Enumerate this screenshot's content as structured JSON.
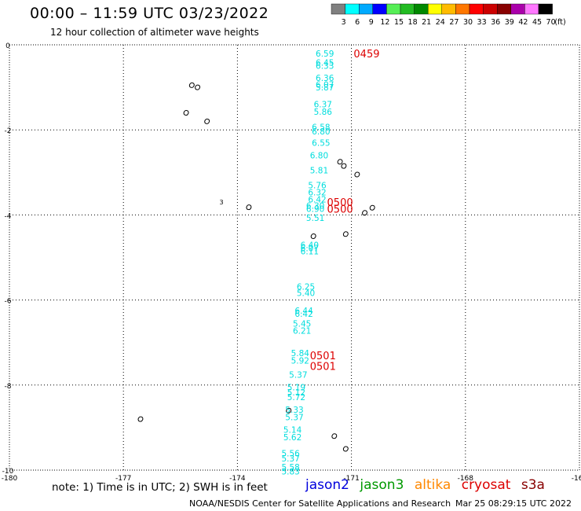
{
  "header": {
    "title": "00:00 – 11:59 UTC 03/23/2022",
    "subtitle": "12 hour collection of altimeter wave heights"
  },
  "colorbar": {
    "labels": [
      "3",
      "6",
      "9",
      "12",
      "15",
      "18",
      "21",
      "24",
      "27",
      "30",
      "33",
      "36",
      "39",
      "42",
      "45",
      "70"
    ],
    "unit": "(ft)",
    "colors": [
      "#808080",
      "#00ffff",
      "#00aaff",
      "#0000ff",
      "#55ee55",
      "#22bb22",
      "#008800",
      "#ffff00",
      "#ffbb00",
      "#ff7700",
      "#ff0000",
      "#cc0000",
      "#880000",
      "#aa00aa",
      "#ff77ff",
      "#000000"
    ]
  },
  "chart_data": {
    "type": "scatter",
    "xlim": [
      -180,
      -165
    ],
    "ylim": [
      -10,
      0
    ],
    "x_ticks": [
      "-180",
      "-177",
      "-174",
      "-171",
      "-168",
      "-165"
    ],
    "y_ticks": [
      "0",
      "-2",
      "-4",
      "-6",
      "-8",
      "-10"
    ],
    "grid": true,
    "series": [
      {
        "name": "jason2",
        "color": "#00dddd",
        "points": [
          {
            "x": -171.7,
            "y": -0.2,
            "label": "6.59"
          },
          {
            "x": -171.7,
            "y": -0.42,
            "label": "6.45"
          },
          {
            "x": -171.7,
            "y": -0.49,
            "label": "6.33"
          },
          {
            "x": -171.7,
            "y": -0.78,
            "label": "6.36"
          },
          {
            "x": -171.7,
            "y": -0.93,
            "label": "6.07"
          },
          {
            "x": -171.7,
            "y": -1.0,
            "label": "5.87"
          },
          {
            "x": -171.75,
            "y": -1.4,
            "label": "6.37"
          },
          {
            "x": -171.75,
            "y": -1.57,
            "label": "5.86"
          },
          {
            "x": -171.8,
            "y": -1.93,
            "label": "6.58"
          },
          {
            "x": -171.8,
            "y": -2.03,
            "label": "6.80"
          },
          {
            "x": -171.8,
            "y": -2.3,
            "label": "6.55"
          },
          {
            "x": -171.85,
            "y": -2.6,
            "label": "6.80"
          },
          {
            "x": -171.85,
            "y": -2.95,
            "label": "5.81"
          },
          {
            "x": -171.9,
            "y": -3.3,
            "label": "5.76"
          },
          {
            "x": -171.9,
            "y": -3.47,
            "label": "6.32"
          },
          {
            "x": -171.9,
            "y": -3.63,
            "label": "6.42"
          },
          {
            "x": -171.95,
            "y": -3.78,
            "label": "6.30"
          },
          {
            "x": -171.95,
            "y": -3.85,
            "label": "6.90"
          },
          {
            "x": -171.95,
            "y": -4.07,
            "label": "5.51"
          },
          {
            "x": -172.1,
            "y": -4.7,
            "label": "6.40"
          },
          {
            "x": -172.1,
            "y": -4.78,
            "label": "6.07"
          },
          {
            "x": -172.1,
            "y": -4.85,
            "label": "6.11"
          },
          {
            "x": -172.2,
            "y": -5.68,
            "label": "6.25"
          },
          {
            "x": -172.2,
            "y": -5.83,
            "label": "5.40"
          },
          {
            "x": -172.25,
            "y": -6.25,
            "label": "6.44"
          },
          {
            "x": -172.25,
            "y": -6.32,
            "label": "6.42"
          },
          {
            "x": -172.3,
            "y": -6.55,
            "label": "5.45"
          },
          {
            "x": -172.3,
            "y": -6.72,
            "label": "6.21"
          },
          {
            "x": -172.35,
            "y": -7.25,
            "label": "5.84"
          },
          {
            "x": -172.35,
            "y": -7.42,
            "label": "5.92"
          },
          {
            "x": -172.4,
            "y": -7.75,
            "label": "5.37"
          },
          {
            "x": -172.45,
            "y": -8.05,
            "label": "5.19"
          },
          {
            "x": -172.45,
            "y": -8.17,
            "label": "5.12"
          },
          {
            "x": -172.45,
            "y": -8.28,
            "label": "5.72"
          },
          {
            "x": -172.5,
            "y": -8.58,
            "label": "5.33"
          },
          {
            "x": -172.5,
            "y": -8.75,
            "label": "5.37"
          },
          {
            "x": -172.55,
            "y": -9.05,
            "label": "5.14"
          },
          {
            "x": -172.55,
            "y": -9.22,
            "label": "5.62"
          },
          {
            "x": -172.6,
            "y": -9.6,
            "label": "5.56"
          },
          {
            "x": -172.6,
            "y": -9.72,
            "label": "5.37"
          },
          {
            "x": -172.6,
            "y": -9.93,
            "label": "5.58"
          },
          {
            "x": -172.6,
            "y": -10.03,
            "label": "5.83"
          }
        ]
      }
    ],
    "time_labels": [
      {
        "x": -170.6,
        "y": -0.2,
        "label": "0459"
      },
      {
        "x": -171.3,
        "y": -3.7,
        "label": "0500"
      },
      {
        "x": -171.3,
        "y": -3.85,
        "label": "0500"
      },
      {
        "x": -171.75,
        "y": -7.3,
        "label": "0501"
      },
      {
        "x": -171.75,
        "y": -7.55,
        "label": "0501"
      }
    ],
    "time_color": "#dd0000",
    "islands": [
      {
        "x": -175.2,
        "y": -0.95,
        "label": ""
      },
      {
        "x": -175.05,
        "y": -1.0,
        "label": ""
      },
      {
        "x": -175.35,
        "y": -1.6,
        "label": ""
      },
      {
        "x": -174.8,
        "y": -1.8,
        "label": ""
      },
      {
        "x": -174.42,
        "y": -3.68,
        "label": "3"
      },
      {
        "x": -173.7,
        "y": -3.82,
        "label": ""
      },
      {
        "x": -171.3,
        "y": -2.75,
        "label": ""
      },
      {
        "x": -171.2,
        "y": -2.85,
        "label": ""
      },
      {
        "x": -170.85,
        "y": -3.05,
        "label": ""
      },
      {
        "x": -170.45,
        "y": -3.83,
        "label": ""
      },
      {
        "x": -170.65,
        "y": -3.95,
        "label": ""
      },
      {
        "x": -172.0,
        "y": -4.5,
        "label": ""
      },
      {
        "x": -171.15,
        "y": -4.45,
        "label": ""
      },
      {
        "x": -172.65,
        "y": -8.6,
        "label": ""
      },
      {
        "x": -171.45,
        "y": -9.2,
        "label": ""
      },
      {
        "x": -171.15,
        "y": -9.5,
        "label": ""
      },
      {
        "x": -176.55,
        "y": -8.8,
        "label": ""
      }
    ]
  },
  "footer": {
    "note": "note:  1) Time is in UTC; 2) SWH is in feet",
    "satellites": [
      {
        "name": "jason2",
        "color": "#0000dd"
      },
      {
        "name": "jason3",
        "color": "#009900"
      },
      {
        "name": "altika",
        "color": "#ff8800"
      },
      {
        "name": "cryosat",
        "color": "#dd0000"
      },
      {
        "name": "s3a",
        "color": "#880000"
      }
    ],
    "credit": "NOAA/NESDIS Center for Satellite Applications and Research",
    "timestamp": "Mar 25 08:29:15 UTC 2022"
  }
}
